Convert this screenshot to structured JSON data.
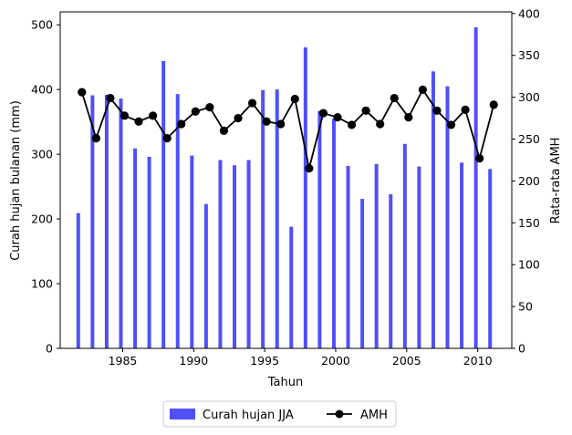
{
  "chart_data": {
    "type": "bar",
    "xlabel": "Tahun",
    "ylabel": "Curah hujan bulanan (mm)",
    "y2label": "Rata-rata AMH",
    "xlim": [
      1980.6,
      2012.4
    ],
    "ylim": [
      0,
      520
    ],
    "y2lim": [
      0,
      402
    ],
    "x_ticks": [
      1985,
      1990,
      1995,
      2000,
      2005,
      2010
    ],
    "y_ticks": [
      0,
      100,
      200,
      300,
      400,
      500
    ],
    "y2_ticks": [
      0,
      50,
      100,
      150,
      200,
      250,
      300,
      350,
      400
    ],
    "legend_position": "below",
    "x": [
      1982,
      1983,
      1984,
      1985,
      1986,
      1987,
      1988,
      1989,
      1990,
      1991,
      1992,
      1993,
      1994,
      1995,
      1996,
      1997,
      1998,
      1999,
      2000,
      2001,
      2002,
      2003,
      2004,
      2005,
      2006,
      2007,
      2008,
      2009,
      2010,
      2011
    ],
    "series": [
      {
        "name": "Curah hujan JJA",
        "kind": "bar",
        "axis": "left",
        "color": "#5050fa",
        "values": [
          209,
          391,
          392,
          386,
          309,
          296,
          444,
          393,
          298,
          223,
          291,
          283,
          291,
          399,
          400,
          188,
          465,
          367,
          355,
          282,
          231,
          285,
          238,
          316,
          281,
          428,
          405,
          287,
          496,
          277
        ]
      },
      {
        "name": "AMH",
        "kind": "line",
        "axis": "right",
        "color": "#000000",
        "values": [
          306,
          251,
          299,
          278,
          271,
          278,
          251,
          268,
          283,
          288,
          260,
          275,
          293,
          271,
          268,
          298,
          215,
          281,
          276,
          267,
          284,
          268,
          299,
          276,
          309,
          284,
          267,
          285,
          227,
          291
        ]
      }
    ]
  }
}
